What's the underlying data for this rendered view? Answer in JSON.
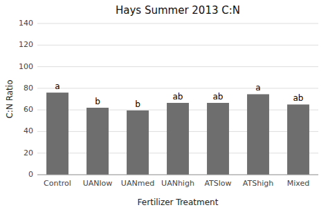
{
  "chart_data": {
    "type": "bar",
    "title": "Hays Summer 2013 C:N",
    "xlabel": "Fertilizer Treatment",
    "ylabel": "C:N Ratio",
    "categories": [
      "Control",
      "UANlow",
      "UANmed",
      "UANhigh",
      "ATSlow",
      "ATShigh",
      "Mixed"
    ],
    "values": [
      76,
      62,
      59.5,
      66.5,
      66.5,
      74.5,
      65
    ],
    "annotations": [
      "a",
      "b",
      "b",
      "ab",
      "ab",
      "a",
      "ab"
    ],
    "color": "#6e6e6e",
    "ylim": [
      0,
      140
    ],
    "yticks": [
      0,
      20,
      40,
      60,
      80,
      100,
      120,
      140
    ],
    "grid": true
  }
}
